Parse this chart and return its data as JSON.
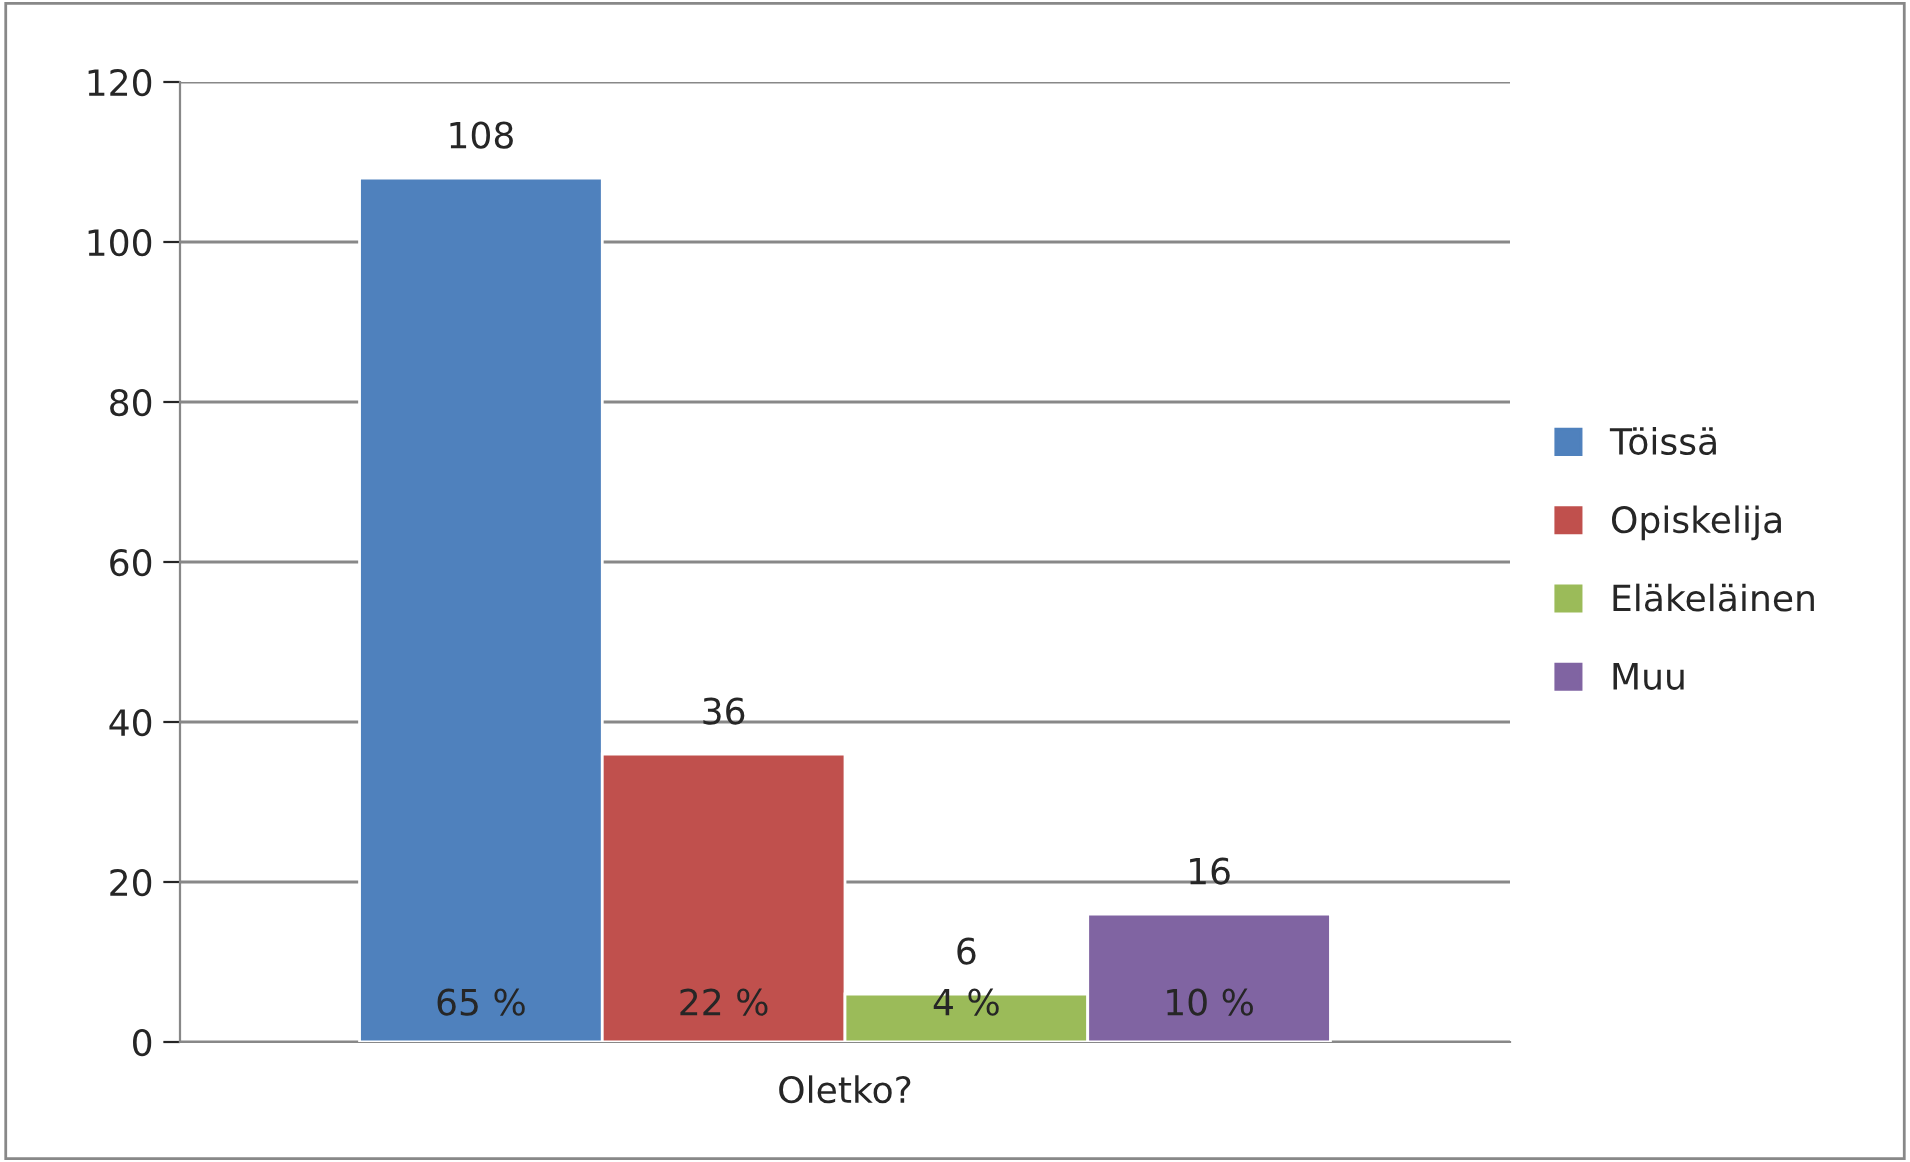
{
  "chart_data": {
    "type": "bar",
    "categories": [
      "Oletko?"
    ],
    "series": [
      {
        "name": "Töissä",
        "color": "#4f81bd",
        "values": [
          108
        ]
      },
      {
        "name": "Opiskelija",
        "color": "#c0504d",
        "values": [
          36
        ]
      },
      {
        "name": "Eläkeläinen",
        "color": "#9bbb59",
        "values": [
          6
        ]
      },
      {
        "name": "Muu",
        "color": "#8064a2",
        "values": [
          16
        ]
      }
    ],
    "ylim": [
      0,
      120
    ],
    "yticks": [
      0,
      20,
      40,
      60,
      80,
      100,
      120
    ],
    "grid": "y",
    "legend": "right",
    "data_labels": true,
    "annotations": [
      "65 %",
      "22 %",
      "4 %",
      "10 %"
    ]
  }
}
